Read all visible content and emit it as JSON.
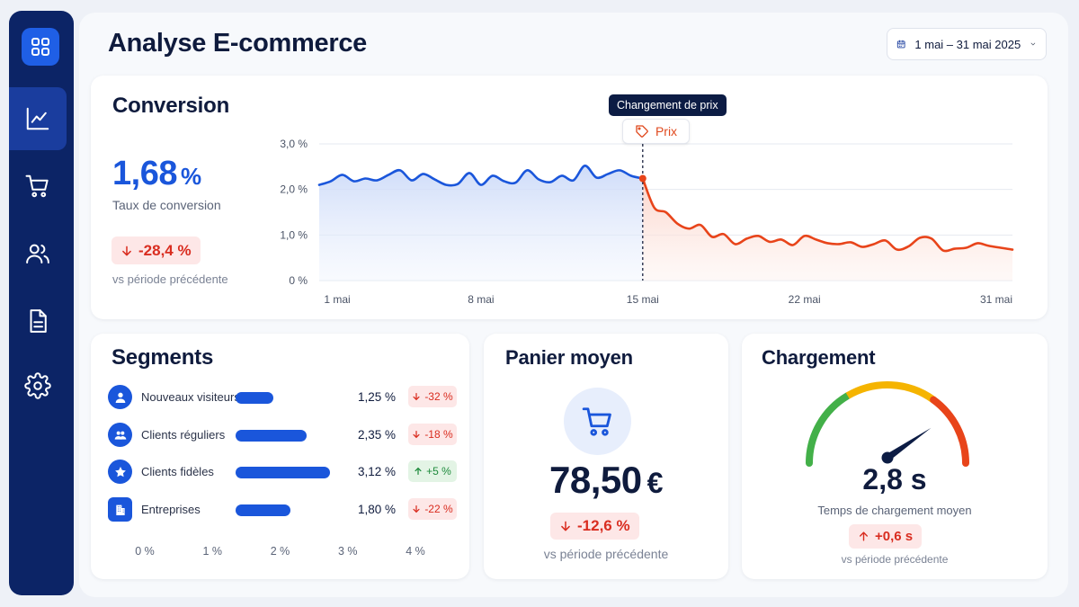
{
  "page": {
    "title": "Analyse E-commerce"
  },
  "date_range": {
    "label": "1 mai – 31 mai 2025"
  },
  "sidebar": {
    "items": [
      {
        "name": "chart-line-icon",
        "active": true
      },
      {
        "name": "cart-icon",
        "active": false
      },
      {
        "name": "users-icon",
        "active": false
      },
      {
        "name": "document-icon",
        "active": false
      },
      {
        "name": "gear-icon",
        "active": false
      }
    ]
  },
  "conversion": {
    "title": "Conversion",
    "value": "1,68",
    "unit": "%",
    "value_label": "Taux de conversion",
    "delta": "-28,4 %",
    "delta_note": "vs période précédente"
  },
  "chart_data": {
    "type": "line",
    "title": "",
    "xlabel": "",
    "ylabel": "",
    "ylim": [
      0,
      3.0
    ],
    "y_ticks": [
      "0 %",
      "1,0 %",
      "2,0 %",
      "3,0 %"
    ],
    "x_ticks": [
      "1 mai",
      "8 mai",
      "15 mai",
      "22 mai",
      "31 mai"
    ],
    "annotation": {
      "tooltip": "Changement de prix",
      "marker_label": "Prix",
      "day": 15
    },
    "series": [
      {
        "color": "#1a56db",
        "points": [
          [
            1,
            2.1
          ],
          [
            1.5,
            2.18
          ],
          [
            2,
            2.32
          ],
          [
            2.5,
            2.18
          ],
          [
            3,
            2.24
          ],
          [
            3.5,
            2.2
          ],
          [
            4,
            2.32
          ],
          [
            4.5,
            2.42
          ],
          [
            5,
            2.2
          ],
          [
            5.5,
            2.34
          ],
          [
            6,
            2.22
          ],
          [
            6.5,
            2.1
          ],
          [
            7,
            2.12
          ],
          [
            7.5,
            2.36
          ],
          [
            8,
            2.1
          ],
          [
            8.5,
            2.3
          ],
          [
            9,
            2.18
          ],
          [
            9.5,
            2.15
          ],
          [
            10,
            2.42
          ],
          [
            10.5,
            2.22
          ],
          [
            11,
            2.16
          ],
          [
            11.5,
            2.3
          ],
          [
            12,
            2.2
          ],
          [
            12.5,
            2.52
          ],
          [
            13,
            2.26
          ],
          [
            13.5,
            2.34
          ],
          [
            14,
            2.42
          ],
          [
            14.5,
            2.3
          ],
          [
            15,
            2.24
          ]
        ]
      },
      {
        "color": "#e8441a",
        "points": [
          [
            15,
            2.24
          ],
          [
            15.5,
            1.6
          ],
          [
            16,
            1.5
          ],
          [
            16.5,
            1.25
          ],
          [
            17,
            1.14
          ],
          [
            17.5,
            1.22
          ],
          [
            18,
            0.96
          ],
          [
            18.5,
            1.02
          ],
          [
            19,
            0.8
          ],
          [
            19.5,
            0.92
          ],
          [
            20,
            0.98
          ],
          [
            20.5,
            0.85
          ],
          [
            21,
            0.9
          ],
          [
            21.5,
            0.78
          ],
          [
            22,
            0.98
          ],
          [
            22.5,
            0.9
          ],
          [
            23,
            0.82
          ],
          [
            23.5,
            0.8
          ],
          [
            24,
            0.84
          ],
          [
            24.5,
            0.74
          ],
          [
            25,
            0.8
          ],
          [
            25.5,
            0.88
          ],
          [
            26,
            0.68
          ],
          [
            26.5,
            0.75
          ],
          [
            27,
            0.94
          ],
          [
            27.5,
            0.92
          ],
          [
            28,
            0.66
          ],
          [
            28.5,
            0.7
          ],
          [
            29,
            0.72
          ],
          [
            29.5,
            0.82
          ],
          [
            30,
            0.76
          ],
          [
            31,
            0.68
          ]
        ]
      }
    ]
  },
  "segments": {
    "title": "Segments",
    "rows": [
      {
        "label": "Nouveaux visiteurs",
        "value": 1.25,
        "value_text": "1,25 %",
        "delta": "-32 %",
        "trend": "neg",
        "icon": "user-icon"
      },
      {
        "label": "Clients réguliers",
        "value": 2.35,
        "value_text": "2,35 %",
        "delta": "-18 %",
        "trend": "neg",
        "icon": "users-icon"
      },
      {
        "label": "Clients fidèles",
        "value": 3.12,
        "value_text": "3,12 %",
        "delta": "+5 %",
        "trend": "pos",
        "icon": "star-icon"
      },
      {
        "label": "Entreprises",
        "value": 1.8,
        "value_text": "1,80 %",
        "delta": "-22 %",
        "trend": "neg",
        "icon": "building-icon"
      }
    ],
    "x_ticks": [
      "0 %",
      "1 %",
      "2 %",
      "3 %",
      "4 %"
    ],
    "x_max": 4
  },
  "panier": {
    "title": "Panier moyen",
    "value": "78,50",
    "unit": "€",
    "delta": "-12,6 %",
    "delta_note": "vs période précédente"
  },
  "chargement": {
    "title": "Chargement",
    "value": "2,8 s",
    "value_label": "Temps de chargement moyen",
    "delta": "+0,6 s",
    "delta_note": "vs période précédente",
    "gauge_level": 0.8,
    "gauge_colors": [
      "#43b049",
      "#f5b400",
      "#e8441a"
    ]
  }
}
